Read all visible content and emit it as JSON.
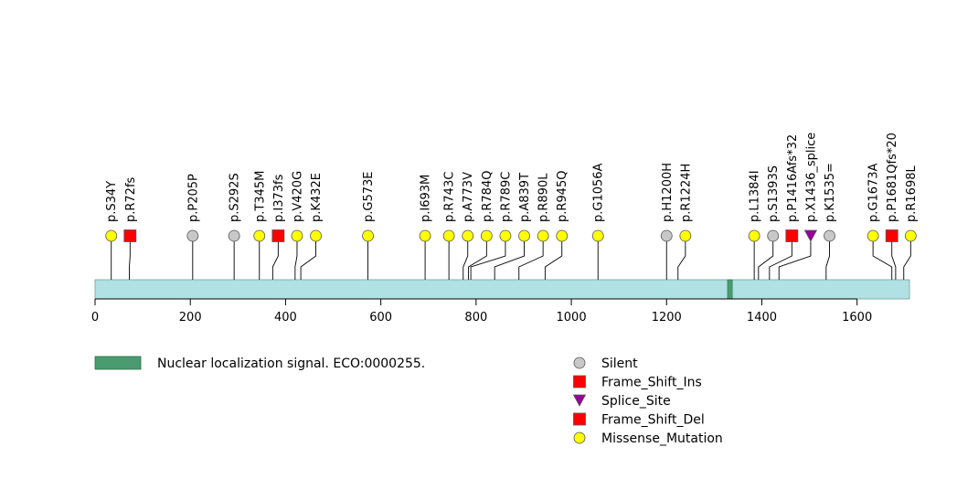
{
  "chart_data": {
    "type": "lollipop",
    "protein_length": 1710,
    "axis": {
      "xlim": [
        0,
        1710
      ],
      "ticks": [
        0,
        200,
        400,
        600,
        800,
        1000,
        1200,
        1400,
        1600
      ]
    },
    "domains": [
      {
        "name": "Nuclear localization signal. ECO:0000255.",
        "start": 1328,
        "end": 1338,
        "color": "#4a9b6f"
      }
    ],
    "mutations": [
      {
        "label": "p.S34Y",
        "pos": 34,
        "type": "Missense_Mutation"
      },
      {
        "label": "p.R72fs",
        "pos": 72,
        "type": "Frame_Shift_Del"
      },
      {
        "label": "p.P205P",
        "pos": 205,
        "type": "Silent"
      },
      {
        "label": "p.S292S",
        "pos": 292,
        "type": "Silent"
      },
      {
        "label": "p.T345M",
        "pos": 345,
        "type": "Missense_Mutation"
      },
      {
        "label": "p.I373fs",
        "pos": 373,
        "type": "Frame_Shift_Del"
      },
      {
        "label": "p.V420G",
        "pos": 420,
        "type": "Missense_Mutation"
      },
      {
        "label": "p.K432E",
        "pos": 432,
        "type": "Missense_Mutation"
      },
      {
        "label": "p.G573E",
        "pos": 573,
        "type": "Missense_Mutation"
      },
      {
        "label": "p.I693M",
        "pos": 693,
        "type": "Missense_Mutation"
      },
      {
        "label": "p.R743C",
        "pos": 743,
        "type": "Missense_Mutation"
      },
      {
        "label": "p.A773V",
        "pos": 773,
        "type": "Missense_Mutation"
      },
      {
        "label": "p.R784Q",
        "pos": 784,
        "type": "Missense_Mutation"
      },
      {
        "label": "p.R789C",
        "pos": 789,
        "type": "Missense_Mutation"
      },
      {
        "label": "p.A839T",
        "pos": 839,
        "type": "Missense_Mutation"
      },
      {
        "label": "p.R890L",
        "pos": 890,
        "type": "Missense_Mutation"
      },
      {
        "label": "p.R945Q",
        "pos": 945,
        "type": "Missense_Mutation"
      },
      {
        "label": "p.G1056A",
        "pos": 1056,
        "type": "Missense_Mutation"
      },
      {
        "label": "p.H1200H",
        "pos": 1200,
        "type": "Silent"
      },
      {
        "label": "p.R1224H",
        "pos": 1224,
        "type": "Missense_Mutation"
      },
      {
        "label": "p.L1384I",
        "pos": 1384,
        "type": "Missense_Mutation"
      },
      {
        "label": "p.S1393S",
        "pos": 1393,
        "type": "Silent"
      },
      {
        "label": "p.P1416Afs*32",
        "pos": 1416,
        "type": "Frame_Shift_Ins"
      },
      {
        "label": "p.X1436_splice",
        "pos": 1436,
        "type": "Splice_Site"
      },
      {
        "label": "p.K1535=",
        "pos": 1535,
        "type": "Silent"
      },
      {
        "label": "p.G1673A",
        "pos": 1673,
        "type": "Missense_Mutation"
      },
      {
        "label": "p.P1681Qfs*20",
        "pos": 1681,
        "type": "Frame_Shift_Del"
      },
      {
        "label": "p.R1698L",
        "pos": 1698,
        "type": "Missense_Mutation"
      }
    ],
    "legend": [
      {
        "type": "Silent",
        "label": "Silent",
        "shape": "circle",
        "color": "#c8c8c8"
      },
      {
        "type": "Frame_Shift_Ins",
        "label": "Frame_Shift_Ins",
        "shape": "square",
        "color": "#ff0000"
      },
      {
        "type": "Splice_Site",
        "label": "Splice_Site",
        "shape": "triangle",
        "color": "#990099"
      },
      {
        "type": "Frame_Shift_Del",
        "label": "Frame_Shift_Del",
        "shape": "square",
        "color": "#ff0000"
      },
      {
        "type": "Missense_Mutation",
        "label": "Missense_Mutation",
        "shape": "circle",
        "color": "#ffff00"
      }
    ],
    "colors": {
      "protein_bar": "#b0e2e4",
      "axis": "#000000"
    }
  }
}
